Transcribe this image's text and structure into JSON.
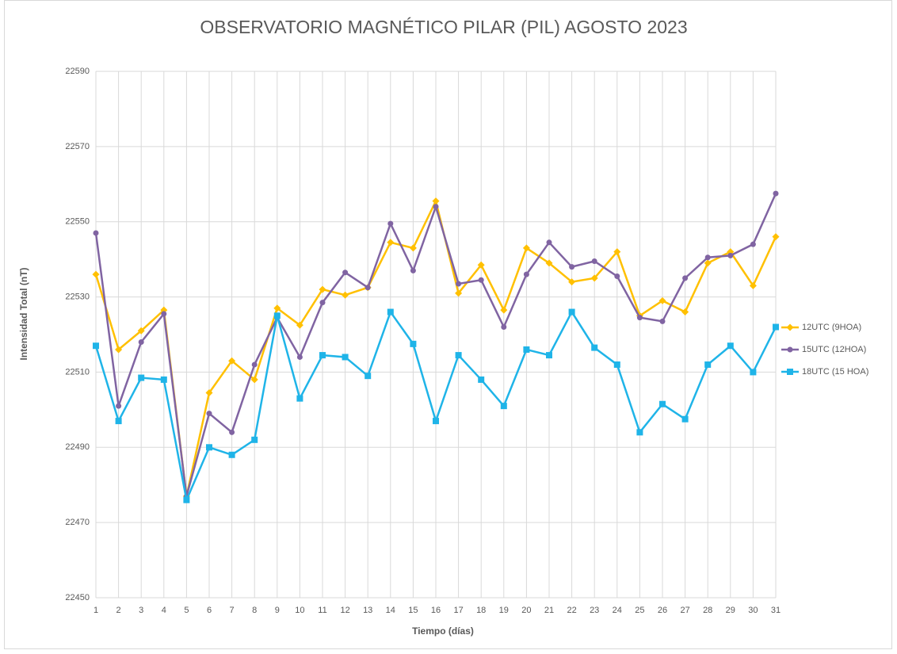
{
  "chart_data": {
    "type": "line",
    "title": "OBSERVATORIO MAGNÉTICO PILAR (PIL) AGOSTO 2023",
    "x_label": "Tiempo (días)",
    "y_label": "Intensidad Total (nT)",
    "x": [
      1,
      2,
      3,
      4,
      5,
      6,
      7,
      8,
      9,
      10,
      11,
      12,
      13,
      14,
      15,
      16,
      17,
      18,
      19,
      20,
      21,
      22,
      23,
      24,
      25,
      26,
      27,
      28,
      29,
      30,
      31
    ],
    "xlim": [
      1,
      31
    ],
    "ylim": [
      22450,
      22590
    ],
    "yticks": [
      22450,
      22470,
      22490,
      22510,
      22530,
      22550,
      22570,
      22590
    ],
    "grid": true,
    "legend": "right",
    "series": [
      {
        "name": "12UTC (9HOA)",
        "color": "#ffc000",
        "marker": "diamond",
        "values": [
          22536,
          22516,
          22521,
          22526.5,
          22477,
          22504.5,
          22513,
          22508,
          22527,
          22522.5,
          22532,
          22530.5,
          22532.5,
          22544.5,
          22543,
          22555.5,
          22531,
          22538.5,
          22526.5,
          22543,
          22539,
          22534,
          22535,
          22542,
          22525,
          22529,
          22526,
          22539,
          22542,
          22533,
          22546
        ]
      },
      {
        "name": "15UTC (12HOA)",
        "color": "#8064a2",
        "marker": "circle",
        "values": [
          22547,
          22501,
          22518,
          22525.5,
          22477,
          22499,
          22494,
          22512,
          22524.5,
          22514,
          22528.5,
          22536.5,
          22532.5,
          22549.5,
          22537,
          22554,
          22533.5,
          22534.5,
          22522,
          22536,
          22544.5,
          22538,
          22539.5,
          22535.5,
          22524.5,
          22523.5,
          22535,
          22540.5,
          22541,
          22544,
          22557.5
        ]
      },
      {
        "name": "18UTC (15 HOA)",
        "color": "#1fb4e8",
        "marker": "square",
        "values": [
          22517,
          22497,
          22508.5,
          22508,
          22476,
          22490,
          22488,
          22492,
          22525,
          22503,
          22514.5,
          22514,
          22509,
          22526,
          22517.5,
          22497,
          22514.5,
          22508,
          22501,
          22516,
          22514.5,
          22526,
          22516.5,
          22512,
          22494,
          22501.5,
          22497.5,
          22512,
          22517,
          22510,
          22522
        ]
      }
    ]
  }
}
